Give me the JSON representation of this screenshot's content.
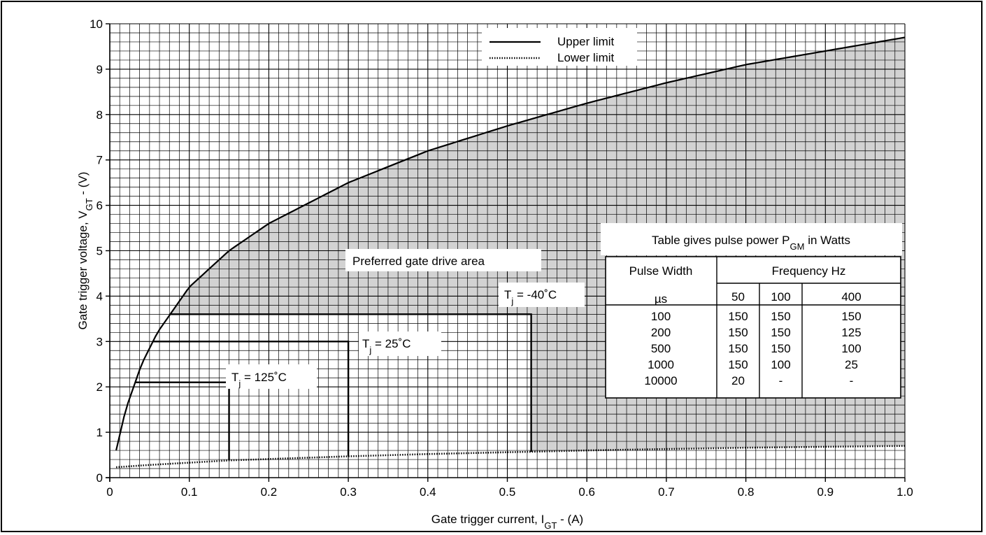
{
  "chart_data": {
    "type": "line",
    "xlabel": "Gate trigger current, I",
    "xlabel_sub": "GT",
    "xlabel_unit": " - (A)",
    "ylabel": "Gate trigger voltage, V",
    "ylabel_sub": "GT",
    "ylabel_unit": " - (V)",
    "xlim": [
      0,
      1.0
    ],
    "ylim": [
      0,
      10
    ],
    "x_ticks": [
      "0",
      "0.1",
      "0.2",
      "0.3",
      "0.4",
      "0.5",
      "0.6",
      "0.7",
      "0.8",
      "0.9",
      "1.0"
    ],
    "y_ticks": [
      "0",
      "1",
      "2",
      "3",
      "4",
      "5",
      "6",
      "7",
      "8",
      "9",
      "10"
    ],
    "grid": true,
    "legend_position": "top-center",
    "series": [
      {
        "name": "Upper limit",
        "style": "solid",
        "x": [
          0.008,
          0.02,
          0.04,
          0.06,
          0.08,
          0.1,
          0.15,
          0.2,
          0.3,
          0.4,
          0.5,
          0.6,
          0.7,
          0.8,
          0.9,
          1.0
        ],
        "y": [
          0.6,
          1.5,
          2.5,
          3.2,
          3.7,
          4.2,
          5.0,
          5.6,
          6.5,
          7.2,
          7.75,
          8.25,
          8.7,
          9.1,
          9.4,
          9.7
        ]
      },
      {
        "name": "Lower limit",
        "style": "dotted",
        "x": [
          0.008,
          0.05,
          0.1,
          0.15,
          0.2,
          0.3,
          0.4,
          0.5,
          0.53,
          0.6,
          0.7,
          0.8,
          0.9,
          1.0
        ],
        "y": [
          0.23,
          0.28,
          0.33,
          0.38,
          0.41,
          0.47,
          0.52,
          0.56,
          0.57,
          0.6,
          0.63,
          0.66,
          0.68,
          0.7
        ]
      }
    ],
    "temperature_boxes": [
      {
        "label": "T",
        "sub": "j",
        "rest": " = -40˚C",
        "x": 0.53,
        "y": 3.6
      },
      {
        "label": "T",
        "sub": "j",
        "rest": " = 25˚C",
        "x": 0.3,
        "y": 3.0
      },
      {
        "label": "T",
        "sub": "j",
        "rest": " = 125˚C",
        "x": 0.15,
        "y": 2.1
      }
    ],
    "shaded_region_label": "Preferred gate drive area",
    "annotations": [
      {
        "text": "Preferred gate drive area"
      }
    ],
    "table": {
      "title": "Table gives pulse power P",
      "title_sub": "GM",
      "title_rest": " in Watts",
      "col_header_left_1": "Pulse Width",
      "col_header_left_2": "µs",
      "col_header_group": "Frequency Hz",
      "frequencies": [
        "50",
        "100",
        "400"
      ],
      "rows": [
        {
          "width": "100",
          "values": [
            "150",
            "150",
            "150"
          ]
        },
        {
          "width": "200",
          "values": [
            "150",
            "150",
            "125"
          ]
        },
        {
          "width": "500",
          "values": [
            "150",
            "150",
            "100"
          ]
        },
        {
          "width": "1000",
          "values": [
            "150",
            "100",
            "25"
          ]
        },
        {
          "width": "10000",
          "values": [
            "20",
            "-",
            "-"
          ]
        }
      ]
    },
    "colors": {
      "shade": "#d2d2d2",
      "line": "#000000",
      "grid": "#000000"
    }
  }
}
